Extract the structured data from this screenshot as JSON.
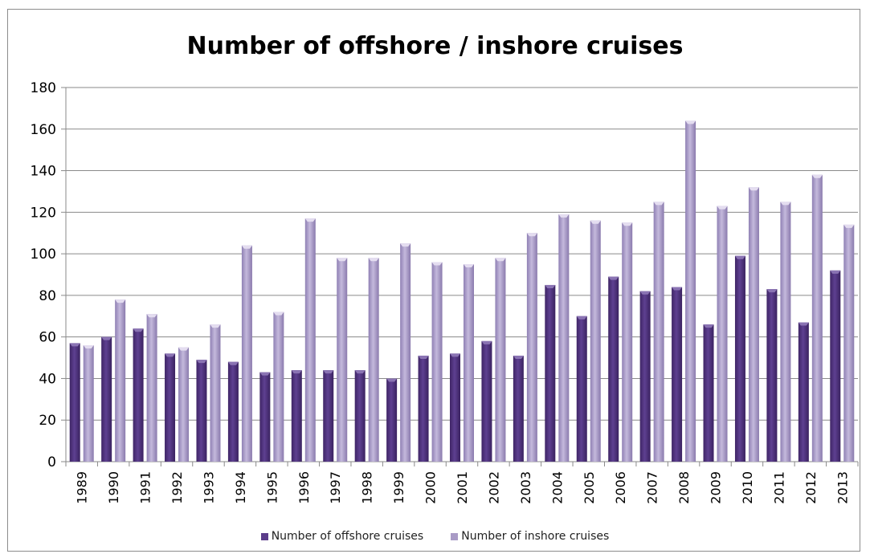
{
  "chart_data": {
    "type": "bar",
    "title": "Number of offshore / inshore cruises",
    "xlabel": "",
    "ylabel": "",
    "ylim": [
      0,
      180
    ],
    "yticks": [
      0,
      20,
      40,
      60,
      80,
      100,
      120,
      140,
      160,
      180
    ],
    "grid": true,
    "legend_position": "bottom",
    "categories": [
      "1989",
      "1990",
      "1991",
      "1992",
      "1993",
      "1994",
      "1995",
      "1996",
      "1997",
      "1998",
      "1999",
      "2000",
      "2001",
      "2002",
      "2003",
      "2004",
      "2005",
      "2006",
      "2007",
      "2008",
      "2009",
      "2010",
      "2011",
      "2012",
      "2013"
    ],
    "series": [
      {
        "name": "Number of offshore cruises",
        "color": "#5b3d8a",
        "values": [
          57,
          60,
          64,
          52,
          49,
          48,
          43,
          44,
          44,
          44,
          40,
          51,
          52,
          58,
          51,
          85,
          70,
          89,
          82,
          84,
          66,
          99,
          83,
          67,
          92
        ]
      },
      {
        "name": "Number of inshore cruises",
        "color": "#a99bc6",
        "values": [
          56,
          78,
          71,
          55,
          66,
          104,
          72,
          117,
          98,
          98,
          105,
          96,
          95,
          98,
          110,
          119,
          116,
          115,
          125,
          164,
          123,
          132,
          125,
          138,
          114
        ]
      }
    ]
  }
}
